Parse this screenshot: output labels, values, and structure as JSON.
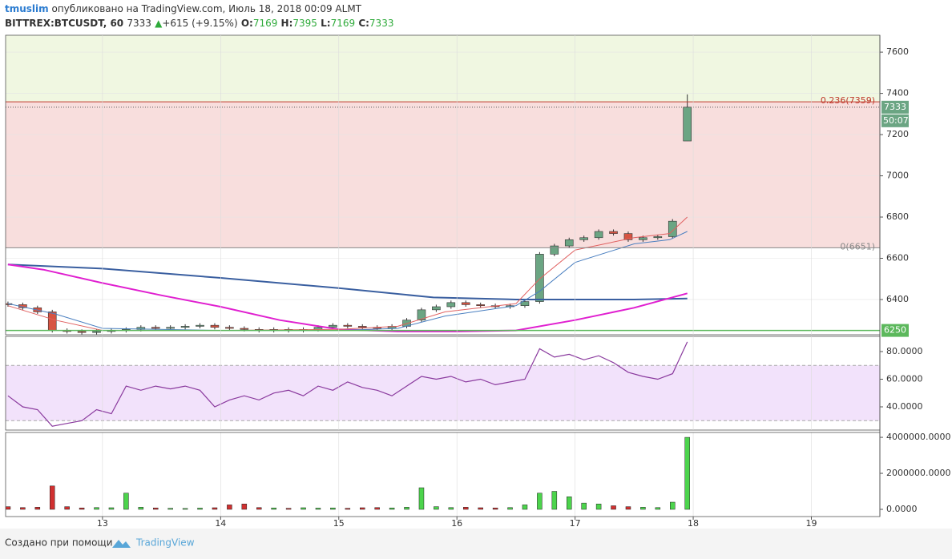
{
  "header": {
    "author": "tmuslim",
    "published": "опубликовано на TradingView.com, Июль 18, 2018 00:09 ALMT",
    "symbol": "BITTREX:BTCUSDT, 60",
    "last": "7333",
    "arrow": "▲",
    "change": "+615 (+9.15%)",
    "ohlc": [
      {
        "key": "O:",
        "value": "7169"
      },
      {
        "key": "H:",
        "value": "7395"
      },
      {
        "key": "L:",
        "value": "7169"
      },
      {
        "key": "C:",
        "value": "7333"
      }
    ]
  },
  "chart_data": [
    {
      "type": "candlestick",
      "x": [
        12.2,
        12.325,
        12.45,
        12.575,
        12.7,
        12.825,
        12.95,
        13.075,
        13.2,
        13.325,
        13.45,
        13.575,
        13.7,
        13.825,
        13.95,
        14.075,
        14.2,
        14.325,
        14.45,
        14.575,
        14.7,
        14.825,
        14.95,
        15.075,
        15.2,
        15.325,
        15.45,
        15.575,
        15.7,
        15.825,
        15.95,
        16.075,
        16.2,
        16.325,
        16.45,
        16.575,
        16.7,
        16.825,
        16.95,
        17.075,
        17.2,
        17.325,
        17.45,
        17.575,
        17.7,
        17.825,
        17.95
      ],
      "open": [
        6380,
        6375,
        6360,
        6340,
        6250,
        6245,
        6240,
        6245,
        6250,
        6255,
        6265,
        6260,
        6265,
        6270,
        6275,
        6265,
        6260,
        6255,
        6250,
        6255,
        6250,
        6255,
        6265,
        6275,
        6270,
        6265,
        6260,
        6270,
        6300,
        6350,
        6365,
        6385,
        6375,
        6370,
        6365,
        6370,
        6390,
        6620,
        6660,
        6690,
        6700,
        6730,
        6720,
        6690,
        6700,
        6705,
        7169
      ],
      "high": [
        6390,
        6385,
        6370,
        6350,
        6260,
        6255,
        6255,
        6260,
        6265,
        6275,
        6275,
        6275,
        6280,
        6285,
        6285,
        6275,
        6270,
        6265,
        6265,
        6265,
        6265,
        6275,
        6285,
        6285,
        6280,
        6275,
        6280,
        6310,
        6360,
        6375,
        6395,
        6395,
        6385,
        6380,
        6380,
        6400,
        6630,
        6670,
        6700,
        6710,
        6740,
        6740,
        6730,
        6710,
        6715,
        6790,
        7395
      ],
      "low": [
        6365,
        6350,
        6330,
        6240,
        6235,
        6230,
        6230,
        6235,
        6240,
        6245,
        6250,
        6250,
        6255,
        6260,
        6255,
        6250,
        6245,
        6240,
        6240,
        6240,
        6240,
        6245,
        6255,
        6260,
        6255,
        6250,
        6250,
        6260,
        6290,
        6340,
        6355,
        6365,
        6360,
        6355,
        6355,
        6360,
        6380,
        6610,
        6650,
        6680,
        6690,
        6710,
        6680,
        6680,
        6690,
        6695,
        7169
      ],
      "close": [
        6375,
        6360,
        6340,
        6250,
        6245,
        6240,
        6245,
        6250,
        6255,
        6265,
        6260,
        6265,
        6270,
        6275,
        6265,
        6260,
        6255,
        6250,
        6255,
        6250,
        6255,
        6265,
        6275,
        6270,
        6265,
        6260,
        6270,
        6300,
        6350,
        6365,
        6385,
        6375,
        6370,
        6365,
        6370,
        6390,
        6620,
        6660,
        6690,
        6700,
        6730,
        6720,
        6690,
        6700,
        6705,
        6780,
        7333
      ],
      "up_color": "#6ba583",
      "down_color": "#d75442",
      "xlim": [
        12.18,
        19.58
      ],
      "ylim": [
        6229,
        7682
      ],
      "yticks": [
        6400,
        6600,
        6800,
        7000,
        7200,
        7400,
        7600
      ],
      "grid": true,
      "zone_colors": [
        "#f0f7e1",
        "#f8dedd"
      ],
      "fib_levels": [
        {
          "value": 7359,
          "label": "0.236(7359)",
          "color": "#c0392b"
        },
        {
          "value": 6651,
          "label": "0(6651)",
          "color": "#888888"
        }
      ],
      "last_price": 7333,
      "countdown": "50:07",
      "hline": {
        "value": 6250,
        "color": "#5cb85c"
      },
      "lines": [
        {
          "color": "#3a5fa0",
          "x": [
            12.2,
            13,
            14,
            15,
            15.8,
            16.5,
            17,
            17.5,
            17.95
          ],
          "values": [
            6570,
            6550,
            6505,
            6455,
            6410,
            6400,
            6400,
            6400,
            6405
          ]
        },
        {
          "color": "#e020d0",
          "x": [
            12.2,
            12.5,
            13,
            13.5,
            14,
            14.5,
            15,
            15.5,
            16,
            16.5,
            17,
            17.5,
            17.95
          ],
          "values": [
            6570,
            6545,
            6480,
            6420,
            6365,
            6300,
            6255,
            6245,
            6245,
            6250,
            6300,
            6360,
            6430
          ]
        },
        {
          "color": "#e06060",
          "x": [
            12.2,
            12.6,
            13,
            14,
            15,
            15.5,
            15.9,
            16.5,
            16.7,
            17,
            17.5,
            17.8,
            17.95
          ],
          "values": [
            6370,
            6300,
            6250,
            6250,
            6255,
            6270,
            6340,
            6380,
            6500,
            6640,
            6700,
            6720,
            6800
          ]
        },
        {
          "color": "#4a7fc0",
          "x": [
            12.2,
            12.6,
            13,
            14,
            15,
            15.5,
            15.9,
            16.5,
            16.7,
            17,
            17.5,
            17.8,
            17.95
          ],
          "values": [
            6380,
            6330,
            6260,
            6250,
            6250,
            6260,
            6320,
            6370,
            6440,
            6580,
            6670,
            6690,
            6730
          ]
        }
      ]
    },
    {
      "type": "line",
      "color": "#8a3a9e",
      "band": [
        30,
        70
      ],
      "band_color": "#f2e2fb",
      "values": [
        48,
        40,
        38,
        26,
        28,
        30,
        38,
        35,
        55,
        52,
        55,
        53,
        55,
        52,
        40,
        45,
        48,
        45,
        50,
        52,
        48,
        55,
        52,
        58,
        54,
        52,
        48,
        55,
        62,
        60,
        62,
        58,
        60,
        56,
        58,
        60,
        82,
        76,
        78,
        74,
        77,
        72,
        65,
        62,
        60,
        64,
        87
      ],
      "ylim": [
        23.2,
        91
      ],
      "yticks": [
        {
          "value": 40,
          "label": "40.0000"
        },
        {
          "value": 60,
          "label": "60.0000"
        },
        {
          "value": 80,
          "label": "80.0000"
        }
      ]
    },
    {
      "type": "bar",
      "up_color": "#4cd44c",
      "down_color": "#d03030",
      "values": [
        150000,
        100000,
        120000,
        1300000,
        150000,
        80000,
        100000,
        90000,
        900000,
        120000,
        80000,
        60000,
        50000,
        70000,
        90000,
        250000,
        300000,
        100000,
        80000,
        60000,
        90000,
        70000,
        80000,
        60000,
        90000,
        100000,
        80000,
        120000,
        1200000,
        150000,
        100000,
        120000,
        90000,
        80000,
        100000,
        250000,
        900000,
        1000000,
        700000,
        350000,
        300000,
        200000,
        150000,
        120000,
        100000,
        400000,
        4000000
      ],
      "ylim": [
        -400000,
        4270000
      ],
      "yticks": [
        {
          "value": 0,
          "label": "0.0000"
        },
        {
          "value": 2000000,
          "label": "2000000.0000"
        },
        {
          "value": 4000000,
          "label": "4000000.0000"
        }
      ],
      "xticks": [
        13,
        14,
        15,
        16,
        17,
        18,
        19
      ]
    }
  ],
  "footer": {
    "credit": "Создано при помощи",
    "brand": "TradingView"
  }
}
